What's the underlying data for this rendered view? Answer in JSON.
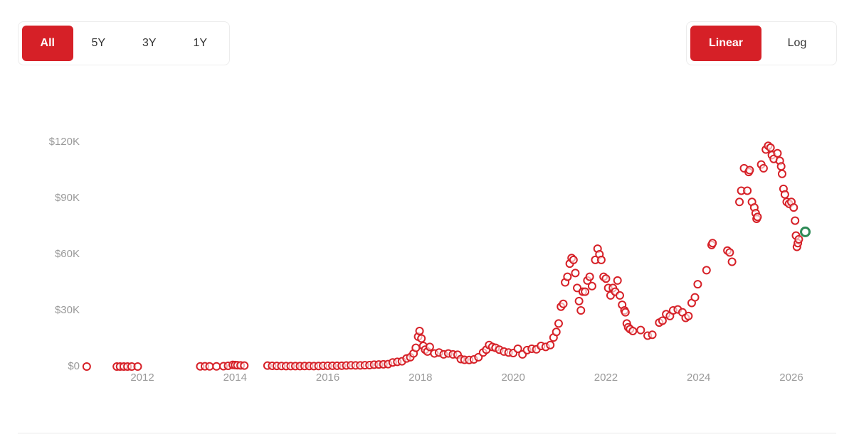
{
  "ui": {
    "range_buttons": [
      "All",
      "5Y",
      "3Y",
      "1Y"
    ],
    "active_range": 0,
    "scale_buttons": [
      "Linear",
      "Log"
    ],
    "active_scale": 0
  },
  "chart_data": {
    "type": "scatter",
    "color": "#d62027",
    "last_point_color": "#2e8b57",
    "grid": false,
    "xlim": [
      2010.6,
      2026.6
    ],
    "xticks": [
      2012,
      2014,
      2016,
      2018,
      2020,
      2022,
      2024,
      2026
    ],
    "ylim": [
      0,
      120000
    ],
    "yticks": [
      {
        "value": 0,
        "label": "$0"
      },
      {
        "value": 30000,
        "label": "$30K"
      },
      {
        "value": 60000,
        "label": "$60K"
      },
      {
        "value": 90000,
        "label": "$90K"
      },
      {
        "value": 120000,
        "label": "$120K"
      }
    ],
    "x": [
      2010.8,
      2011.45,
      2011.52,
      2011.6,
      2011.68,
      2011.77,
      2011.9,
      2013.25,
      2013.35,
      2013.45,
      2013.6,
      2013.75,
      2013.85,
      2013.95,
      2014.0,
      2014.05,
      2014.12,
      2014.2,
      2014.7,
      2014.8,
      2014.9,
      2015.0,
      2015.1,
      2015.2,
      2015.3,
      2015.4,
      2015.5,
      2015.6,
      2015.7,
      2015.8,
      2015.9,
      2016.0,
      2016.1,
      2016.2,
      2016.3,
      2016.4,
      2016.5,
      2016.6,
      2016.7,
      2016.8,
      2016.9,
      2017.0,
      2017.1,
      2017.2,
      2017.3,
      2017.4,
      2017.5,
      2017.6,
      2017.7,
      2017.78,
      2017.85,
      2017.9,
      2017.95,
      2017.98,
      2018.02,
      2018.06,
      2018.1,
      2018.15,
      2018.2,
      2018.3,
      2018.4,
      2018.5,
      2018.6,
      2018.7,
      2018.8,
      2018.87,
      2018.95,
      2019.05,
      2019.15,
      2019.25,
      2019.35,
      2019.42,
      2019.48,
      2019.55,
      2019.62,
      2019.7,
      2019.8,
      2019.9,
      2020.0,
      2020.1,
      2020.2,
      2020.3,
      2020.4,
      2020.5,
      2020.6,
      2020.7,
      2020.8,
      2020.87,
      2020.93,
      2020.98,
      2021.03,
      2021.08,
      2021.12,
      2021.17,
      2021.22,
      2021.26,
      2021.3,
      2021.34,
      2021.38,
      2021.42,
      2021.46,
      2021.5,
      2021.55,
      2021.6,
      2021.65,
      2021.7,
      2021.77,
      2021.82,
      2021.86,
      2021.9,
      2021.95,
      2022.0,
      2022.05,
      2022.1,
      2022.15,
      2022.2,
      2022.25,
      2022.3,
      2022.35,
      2022.4,
      2022.42,
      2022.45,
      2022.48,
      2022.52,
      2022.58,
      2022.75,
      2022.9,
      2023.0,
      2023.15,
      2023.22,
      2023.3,
      2023.38,
      2023.45,
      2023.55,
      2023.65,
      2023.72,
      2023.78,
      2023.85,
      2023.92,
      2023.98,
      2024.17,
      2024.28,
      2024.3,
      2024.62,
      2024.67,
      2024.72,
      2024.88,
      2024.92,
      2024.98,
      2025.05,
      2025.08,
      2025.1,
      2025.15,
      2025.2,
      2025.23,
      2025.25,
      2025.27,
      2025.35,
      2025.4,
      2025.45,
      2025.5,
      2025.55,
      2025.58,
      2025.62,
      2025.7,
      2025.75,
      2025.78,
      2025.8,
      2025.83,
      2025.86,
      2025.9,
      2025.95,
      2026.0,
      2026.05,
      2026.08,
      2026.1,
      2026.12,
      2026.14,
      2026.16,
      2026.3
    ],
    "values": [
      0,
      0,
      0,
      0,
      0,
      0,
      0,
      100,
      120,
      100,
      100,
      200,
      400,
      900,
      800,
      700,
      600,
      500,
      500,
      400,
      350,
      300,
      250,
      240,
      240,
      230,
      270,
      280,
      240,
      300,
      400,
      430,
      420,
      410,
      450,
      580,
      670,
      620,
      610,
      700,
      750,
      1000,
      1100,
      1200,
      1300,
      2200,
      2500,
      2800,
      4300,
      5000,
      7000,
      10000,
      16000,
      19000,
      15000,
      11000,
      9000,
      8000,
      10500,
      7000,
      7500,
      6500,
      7000,
      6500,
      6300,
      4000,
      3600,
      3500,
      3800,
      5000,
      7500,
      9000,
      11500,
      10500,
      10000,
      9000,
      8000,
      7500,
      7200,
      9500,
      6500,
      8800,
      9500,
      9200,
      11000,
      10500,
      11500,
      15500,
      18500,
      23000,
      32000,
      33500,
      45000,
      48000,
      55000,
      58000,
      57000,
      50000,
      42000,
      35000,
      30000,
      40000,
      40000,
      46000,
      48000,
      43000,
      57000,
      63000,
      60000,
      57000,
      48000,
      47000,
      42000,
      38000,
      42000,
      40000,
      46000,
      38000,
      33000,
      30000,
      29000,
      23000,
      21000,
      20000,
      19000,
      19500,
      16500,
      17000,
      23500,
      24500,
      28000,
      27000,
      30000,
      30500,
      29000,
      26000,
      27000,
      34000,
      37000,
      44000,
      51500,
      65000,
      66000,
      62000,
      61000,
      56000,
      88000,
      94000,
      106000,
      94000,
      104000,
      105000,
      88000,
      85000,
      82000,
      79000,
      80000,
      108000,
      106000,
      116000,
      118000,
      117000,
      113000,
      111000,
      114000,
      110000,
      107000,
      103000,
      95000,
      92000,
      88000,
      87000,
      88000,
      85000,
      78000,
      70000,
      64000,
      66000,
      68000,
      72000
    ]
  }
}
